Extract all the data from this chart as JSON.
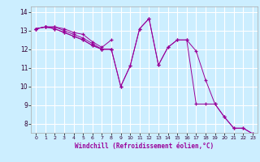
{
  "title": "",
  "xlabel": "Windchill (Refroidissement éolien,°C)",
  "ylabel": "",
  "background_color": "#cceeff",
  "grid_color": "#ffffff",
  "line_color": "#990099",
  "xlim": [
    -0.5,
    23.5
  ],
  "ylim": [
    7.5,
    14.3
  ],
  "yticks": [
    8,
    9,
    10,
    11,
    12,
    13,
    14
  ],
  "xticks": [
    0,
    1,
    2,
    3,
    4,
    5,
    6,
    7,
    8,
    9,
    10,
    11,
    12,
    13,
    14,
    15,
    16,
    17,
    18,
    19,
    20,
    21,
    22,
    23
  ],
  "series": [
    [
      13.1,
      13.2,
      13.2,
      13.1,
      12.9,
      12.8,
      12.4,
      12.1,
      12.5,
      null,
      null,
      null,
      null,
      null,
      null,
      null,
      null,
      null,
      null,
      null,
      null,
      null,
      null,
      null
    ],
    [
      13.1,
      13.2,
      13.2,
      13.0,
      12.8,
      12.6,
      12.3,
      12.0,
      12.0,
      null,
      null,
      null,
      null,
      null,
      null,
      null,
      null,
      null,
      null,
      null,
      null,
      null,
      null,
      null
    ],
    [
      13.1,
      13.2,
      13.1,
      12.9,
      12.7,
      12.5,
      12.2,
      12.0,
      12.0,
      10.0,
      11.1,
      13.1,
      13.65,
      11.15,
      12.1,
      12.5,
      12.5,
      11.9,
      10.35,
      9.05,
      8.35,
      7.75,
      7.75,
      7.45
    ],
    [
      13.1,
      13.2,
      13.1,
      12.9,
      12.7,
      12.5,
      12.2,
      12.0,
      12.0,
      10.0,
      11.1,
      13.1,
      13.65,
      11.15,
      12.1,
      12.5,
      12.5,
      9.05,
      9.05,
      9.05,
      8.35,
      7.75,
      7.75,
      7.45
    ]
  ]
}
